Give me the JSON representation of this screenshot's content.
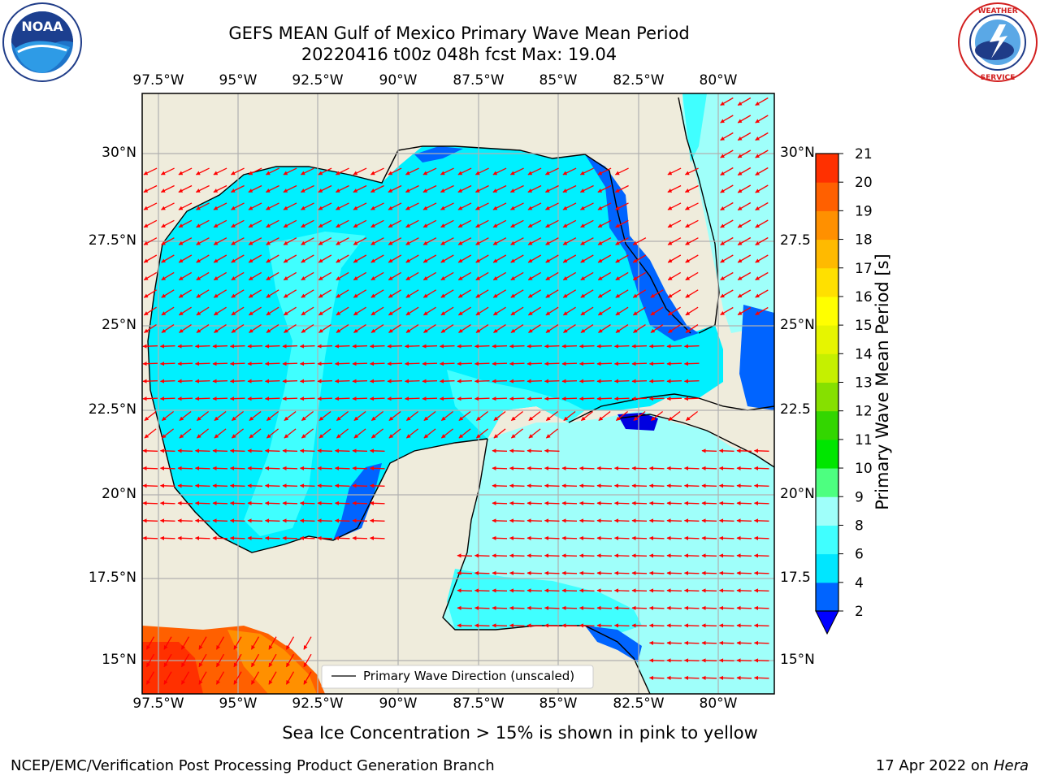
{
  "header": {
    "title_line1": "GEFS MEAN Gulf of Mexico Primary Wave Mean Period",
    "title_line2": "20220416 t00z 048h fcst   Max: 19.04"
  },
  "logos": {
    "left": {
      "name": "NOAA",
      "ring_text": "NATIONAL OCEANIC AND ATMOSPHERIC ADMINISTRATION · U.S. DEPARTMENT OF COMMERCE"
    },
    "right": {
      "name": "NATIONAL WEATHER SERVICE"
    }
  },
  "map": {
    "lon_labels": [
      "97.5°W",
      "95°W",
      "92.5°W",
      "90°W",
      "87.5°W",
      "85°W",
      "82.5°W",
      "80°W"
    ],
    "lat_labels": [
      "30°N",
      "27.5°N",
      "25°N",
      "22.5°N",
      "20°N",
      "17.5°N",
      "15°N"
    ],
    "lat_labels_right": [
      "30°N",
      "27.5",
      "25°N",
      "22.5",
      "20°N",
      "17.5",
      "15°N"
    ],
    "colors": {
      "land": "#efecdc",
      "coast": "#000000",
      "arrow": "#ff0000",
      "grid": "#b0b0b0"
    },
    "legend_label": "Primary Wave Direction (unscaled)"
  },
  "colorbar": {
    "label": "Primary Wave Mean Period [s]",
    "ticks": [
      "2",
      "4",
      "6",
      "8",
      "9",
      "10",
      "11",
      "12",
      "13",
      "14",
      "15",
      "16",
      "17",
      "18",
      "19",
      "20",
      "21"
    ],
    "colors": [
      "#0064ff",
      "#00e6ff",
      "#40ffff",
      "#9ffffa",
      "#4dff80",
      "#00e600",
      "#33d600",
      "#86e000",
      "#c5f000",
      "#e6f500",
      "#ffff00",
      "#ffe000",
      "#ffba00",
      "#ff9000",
      "#ff6000",
      "#ff3000"
    ],
    "under_color": "#0000ff"
  },
  "footer": {
    "note": "Sea Ice Concentration > 15% is shown in pink to yellow",
    "left": "NCEP/EMC/Verification Post Processing Product Generation Branch",
    "date": "17 Apr 2022 on ",
    "machine": "Hera"
  }
}
